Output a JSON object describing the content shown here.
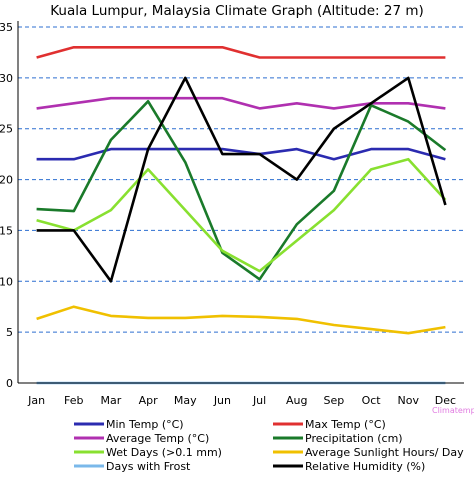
{
  "chart_data": {
    "type": "line",
    "title": "Kuala Lumpur, Malaysia Climate Graph (Altitude: 27 m)",
    "categories": [
      "Jan",
      "Feb",
      "Mar",
      "Apr",
      "May",
      "Jun",
      "Jul",
      "Aug",
      "Sep",
      "Oct",
      "Nov",
      "Dec"
    ],
    "y_ticks": [
      "0",
      "5",
      "10",
      "15",
      "20",
      "25",
      "30",
      "35"
    ],
    "ylim": [
      0,
      35
    ],
    "xlabel": "",
    "ylabel": "",
    "grid": "dashed horizontal",
    "legend_position": "bottom",
    "watermark": "Climatemps",
    "series": [
      {
        "name": "Min Temp (°C)",
        "color": "#2b2bb0",
        "values": [
          22,
          22,
          23,
          23,
          23,
          23,
          22.5,
          23,
          22,
          23,
          23,
          22
        ]
      },
      {
        "name": "Max Temp (°C)",
        "color": "#e03030",
        "values": [
          32,
          33,
          33,
          33,
          33,
          33,
          32,
          32,
          32,
          32,
          32,
          32
        ]
      },
      {
        "name": "Average Temp (°C)",
        "color": "#b030b0",
        "values": [
          27,
          27.5,
          28,
          28,
          28,
          28,
          27,
          27.5,
          27,
          27.5,
          27.5,
          27
        ]
      },
      {
        "name": "Precipitation (cm)",
        "color": "#1a7a2a",
        "values": [
          17.1,
          16.9,
          23.9,
          27.7,
          21.7,
          12.8,
          10.2,
          15.6,
          18.9,
          27.3,
          25.7,
          22.9
        ]
      },
      {
        "name": "Wet Days (>0.1 mm)",
        "color": "#88e030",
        "values": [
          16,
          15,
          17,
          21,
          17,
          13,
          11,
          14,
          17,
          21,
          22,
          18
        ]
      },
      {
        "name": "Average Sunlight Hours/ Day",
        "color": "#f0c000",
        "values": [
          6.3,
          7.5,
          6.6,
          6.4,
          6.4,
          6.6,
          6.5,
          6.3,
          5.7,
          5.3,
          4.9,
          5.5
        ]
      },
      {
        "name": "Days with Frost",
        "color": "#7ab8ea",
        "values": [
          0,
          0,
          0,
          0,
          0,
          0,
          0,
          0,
          0,
          0,
          0,
          0
        ]
      },
      {
        "name": "Relative Humidity (%)",
        "color": "#000000",
        "values": [
          15,
          15,
          10,
          23,
          30,
          22.5,
          22.5,
          20,
          25,
          27.5,
          30,
          17.5
        ]
      }
    ]
  }
}
